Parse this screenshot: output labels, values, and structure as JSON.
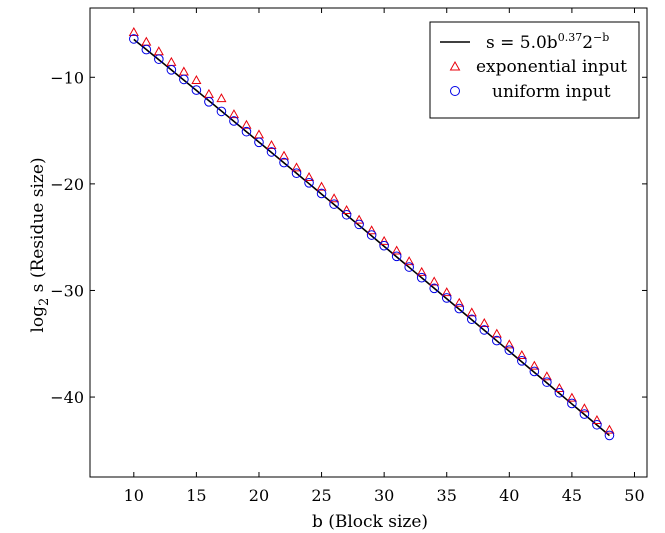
{
  "chart_data": {
    "type": "scatter",
    "xlabel": "b (Block size)",
    "ylabel_main": "log",
    "ylabel_sub": "2",
    "ylabel_rest": " s (Residue size)",
    "xlim": [
      6.5,
      51
    ],
    "ylim": [
      -47.5,
      -3.5
    ],
    "x_ticks": [
      10,
      15,
      20,
      25,
      30,
      35,
      40,
      45,
      50
    ],
    "x_tick_labels": [
      "10",
      "15",
      "20",
      "25",
      "30",
      "35",
      "40",
      "45",
      "50"
    ],
    "y_ticks": [
      -10,
      -20,
      -30,
      -40
    ],
    "y_tick_labels": [
      "−10",
      "−20",
      "−30",
      "−40"
    ],
    "grid": false,
    "legend_placement": "top-right",
    "legend": {
      "fit_label_prefix": "s = 5.0b",
      "fit_label_sup1": "0.37",
      "fit_label_mid": "2",
      "fit_label_sup2": "−b",
      "exp_label": "exponential input",
      "uni_label": "uniform input"
    },
    "colors": {
      "fit": "#000000",
      "exponential": "#e8000b",
      "uniform": "#0000e6"
    },
    "fit_curve": {
      "formula": "s = 5.0 * b^0.37 * 2^(-b)",
      "x_range": [
        10,
        48
      ]
    },
    "x": [
      10,
      11,
      12,
      13,
      14,
      15,
      16,
      17,
      18,
      19,
      20,
      21,
      22,
      23,
      24,
      25,
      26,
      27,
      28,
      29,
      30,
      31,
      32,
      33,
      34,
      35,
      36,
      37,
      38,
      39,
      40,
      41,
      42,
      43,
      44,
      45,
      46,
      47,
      48
    ],
    "series": [
      {
        "name": "exponential input",
        "marker": "triangle",
        "values": [
          -5.8,
          -6.7,
          -7.6,
          -8.6,
          -9.5,
          -10.3,
          -11.6,
          -12.0,
          -13.5,
          -14.5,
          -15.4,
          -16.4,
          -17.4,
          -18.5,
          -19.4,
          -20.3,
          -21.4,
          -22.5,
          -23.4,
          -24.4,
          -25.4,
          -26.3,
          -27.3,
          -28.3,
          -29.2,
          -30.2,
          -31.2,
          -32.1,
          -33.1,
          -34.1,
          -35.1,
          -36.1,
          -37.1,
          -38.1,
          -39.2,
          -40.1,
          -41.1,
          -42.2,
          -43.1
        ]
      },
      {
        "name": "uniform input",
        "marker": "circle",
        "values": [
          -6.4,
          -7.4,
          -8.3,
          -9.3,
          -10.2,
          -11.2,
          -12.3,
          -13.2,
          -14.1,
          -15.1,
          -16.1,
          -17.0,
          -18.0,
          -19.0,
          -19.9,
          -20.9,
          -21.9,
          -22.9,
          -23.8,
          -24.8,
          -25.8,
          -26.8,
          -27.8,
          -28.8,
          -29.8,
          -30.7,
          -31.7,
          -32.7,
          -33.7,
          -34.7,
          -35.6,
          -36.6,
          -37.6,
          -38.6,
          -39.6,
          -40.6,
          -41.6,
          -42.6,
          -43.6
        ]
      }
    ]
  }
}
